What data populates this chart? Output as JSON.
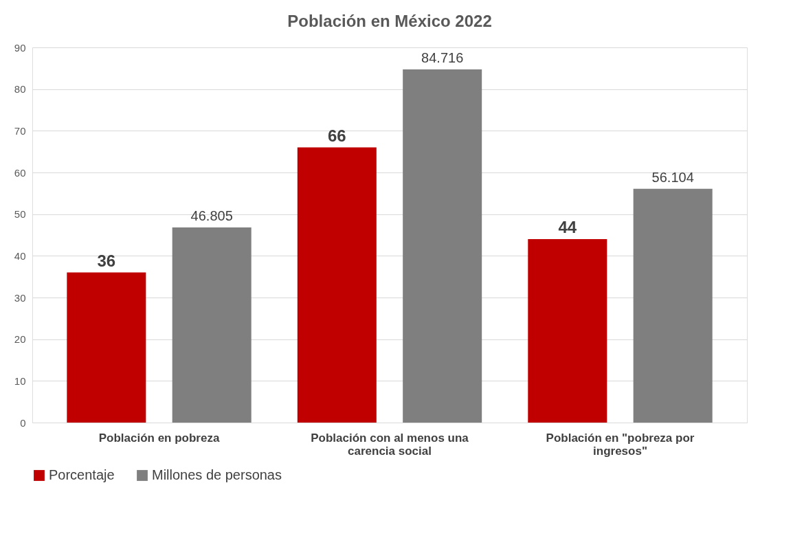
{
  "chart_data": {
    "type": "bar",
    "title": "Población en México 2022",
    "categories": [
      "Población en pobreza",
      "Población con al menos una carencia social",
      "Población en \"pobreza por ingresos\""
    ],
    "series": [
      {
        "name": "Porcentaje",
        "color": "#c00000",
        "values": [
          36,
          66,
          44
        ]
      },
      {
        "name": "Millones de personas",
        "color": "#7f7f7f",
        "values": [
          46.805,
          84.716,
          56.104
        ]
      }
    ],
    "ylim": [
      0,
      90
    ],
    "yticks": [
      0,
      10,
      20,
      30,
      40,
      50,
      60,
      70,
      80,
      90
    ],
    "grid": "y",
    "legend": "bottom",
    "data_labels": true
  }
}
